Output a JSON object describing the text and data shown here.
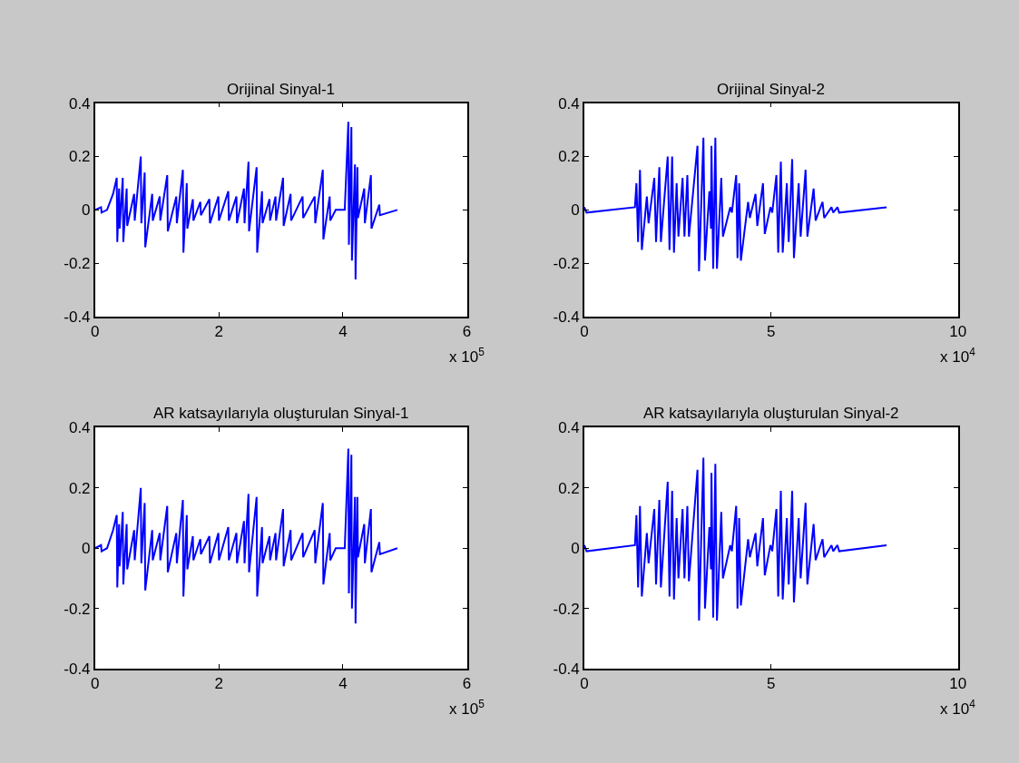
{
  "chart_data": [
    {
      "type": "line",
      "title": "Orijinal Sinyal-1",
      "color": "#0000ff",
      "xlim": [
        0,
        6
      ],
      "ylim": [
        -0.4,
        0.4
      ],
      "xticks": [
        0,
        2,
        4,
        6
      ],
      "yticks": [
        -0.4,
        -0.2,
        0,
        0.2,
        0.4
      ],
      "annotations": [
        "x 10$^{5}$"
      ],
      "x": [
        0,
        0.097,
        0.105,
        0.194,
        0.291,
        0.35,
        0.359,
        0.388,
        0.397,
        0.447,
        0.456,
        0.51,
        0.519,
        0.631,
        0.64,
        0.738,
        0.747,
        0.801,
        0.81,
        0.922,
        0.931,
        1.044,
        1.053,
        1.165,
        1.174,
        1.311,
        1.32,
        1.417,
        1.426,
        1.48,
        1.489,
        1.578,
        1.587,
        1.699,
        1.708,
        1.845,
        1.854,
        1.99,
        1.999,
        2.15,
        2.159,
        2.281,
        2.29,
        2.403,
        2.412,
        2.476,
        2.485,
        2.607,
        2.616,
        2.694,
        2.703,
        2.815,
        2.824,
        2.912,
        2.921,
        3.034,
        3.043,
        3.155,
        3.164,
        3.349,
        3.358,
        3.544,
        3.553,
        3.675,
        3.684,
        3.786,
        3.795,
        3.883,
        4.029,
        4.087,
        4.096,
        4.136,
        4.145,
        4.194,
        4.203,
        4.233,
        4.242,
        4.344,
        4.353,
        4.451,
        4.46,
        4.587,
        4.596,
        4.878
      ],
      "values": [
        0,
        0.01,
        -0.01,
        0,
        0.06,
        0.12,
        -0.12,
        0.08,
        -0.07,
        0.12,
        -0.12,
        0.08,
        -0.06,
        0.06,
        -0.04,
        0.2,
        -0.05,
        0.14,
        -0.14,
        0.06,
        -0.04,
        0.05,
        -0.04,
        0.13,
        -0.08,
        0.05,
        -0.05,
        0.15,
        -0.16,
        0.1,
        -0.07,
        0.04,
        -0.04,
        0.03,
        -0.02,
        0.04,
        -0.05,
        0.05,
        -0.04,
        0.07,
        -0.04,
        0.05,
        -0.05,
        0.08,
        -0.05,
        0.18,
        -0.08,
        0.16,
        -0.16,
        0.07,
        -0.05,
        0.04,
        -0.04,
        0.05,
        -0.04,
        0.12,
        -0.06,
        0.06,
        -0.04,
        0.05,
        -0.03,
        0.05,
        -0.05,
        0.15,
        -0.11,
        0.05,
        -0.04,
        0,
        0,
        0.33,
        -0.13,
        0.31,
        -0.19,
        0.17,
        -0.26,
        0.16,
        -0.03,
        0.08,
        -0.05,
        0.13,
        -0.07,
        0.02,
        -0.02,
        0
      ]
    },
    {
      "type": "line",
      "title": "Orijinal Sinyal-2",
      "color": "#0000ff",
      "xlim": [
        0,
        10
      ],
      "ylim": [
        -0.4,
        0.4
      ],
      "xticks": [
        0,
        5,
        10
      ],
      "yticks": [
        -0.4,
        -0.2,
        0,
        0.2,
        0.4
      ],
      "annotations": [
        "x 10$^{4}$"
      ],
      "x": [
        0,
        0.06,
        1.355,
        1.395,
        1.44,
        1.49,
        1.54,
        1.674,
        1.72,
        1.873,
        1.92,
        2.008,
        2.05,
        2.232,
        2.28,
        2.351,
        2.4,
        2.471,
        2.52,
        2.63,
        2.68,
        2.758,
        2.8,
        3.029,
        3.07,
        3.188,
        3.23,
        3.347,
        3.39,
        3.403,
        3.45,
        3.507,
        3.55,
        3.666,
        3.71,
        3.905,
        3.95,
        4.065,
        4.1,
        4.144,
        4.19,
        4.384,
        4.43,
        4.583,
        4.63,
        4.782,
        4.83,
        4.981,
        5.03,
        5.141,
        5.19,
        5.26,
        5.31,
        5.42,
        5.47,
        5.563,
        5.61,
        5.738,
        5.79,
        5.922,
        5.97,
        6.137,
        6.19,
        6.376,
        6.42,
        6.615,
        6.66,
        6.775,
        6.82,
        8.09
      ],
      "values": [
        0.01,
        -0.01,
        0.01,
        0.1,
        -0.12,
        0.15,
        -0.15,
        0.05,
        -0.05,
        0.12,
        -0.12,
        0.16,
        -0.12,
        0.2,
        -0.15,
        0.2,
        -0.16,
        0.1,
        -0.1,
        0.12,
        -0.1,
        0.13,
        -0.1,
        0.24,
        -0.23,
        0.27,
        -0.19,
        0.07,
        -0.07,
        0.24,
        -0.22,
        0.27,
        -0.22,
        0.12,
        -0.1,
        0.01,
        -0.01,
        0.13,
        -0.18,
        0.1,
        -0.19,
        0.03,
        -0.03,
        0.06,
        -0.06,
        0.1,
        -0.09,
        0.01,
        -0.01,
        0.13,
        -0.16,
        0.18,
        -0.16,
        0.1,
        -0.12,
        0.19,
        -0.18,
        0.1,
        -0.1,
        0.15,
        -0.1,
        0.08,
        -0.04,
        0.03,
        -0.03,
        0.01,
        -0.01,
        0.01,
        -0.01,
        0.01
      ]
    },
    {
      "type": "line",
      "title": "AR katsayılarıyla oluşturulan Sinyal-1",
      "color": "#0000ff",
      "xlim": [
        0,
        6
      ],
      "ylim": [
        -0.4,
        0.4
      ],
      "xticks": [
        0,
        2,
        4,
        6
      ],
      "yticks": [
        -0.4,
        -0.2,
        0,
        0.2,
        0.4
      ],
      "annotations": [
        "x 10$^{5}$"
      ],
      "x": [
        0,
        0.097,
        0.105,
        0.194,
        0.291,
        0.35,
        0.359,
        0.388,
        0.397,
        0.447,
        0.456,
        0.51,
        0.519,
        0.631,
        0.64,
        0.738,
        0.747,
        0.801,
        0.81,
        0.922,
        0.931,
        1.044,
        1.053,
        1.165,
        1.174,
        1.311,
        1.32,
        1.417,
        1.426,
        1.48,
        1.489,
        1.578,
        1.587,
        1.699,
        1.708,
        1.845,
        1.854,
        1.99,
        1.999,
        2.15,
        2.159,
        2.281,
        2.29,
        2.403,
        2.412,
        2.476,
        2.485,
        2.607,
        2.616,
        2.694,
        2.703,
        2.815,
        2.824,
        2.912,
        2.921,
        3.034,
        3.043,
        3.155,
        3.164,
        3.349,
        3.358,
        3.544,
        3.553,
        3.675,
        3.684,
        3.786,
        3.795,
        3.883,
        4.029,
        4.087,
        4.096,
        4.136,
        4.145,
        4.194,
        4.203,
        4.233,
        4.242,
        4.344,
        4.353,
        4.451,
        4.46,
        4.587,
        4.596,
        4.878
      ],
      "values": [
        0,
        0.01,
        -0.01,
        0,
        0.06,
        0.11,
        -0.13,
        0.08,
        -0.06,
        0.12,
        -0.12,
        0.08,
        -0.07,
        0.06,
        -0.04,
        0.2,
        -0.05,
        0.15,
        -0.14,
        0.06,
        -0.04,
        0.05,
        -0.04,
        0.14,
        -0.08,
        0.05,
        -0.05,
        0.16,
        -0.16,
        0.11,
        -0.07,
        0.04,
        -0.04,
        0.03,
        -0.02,
        0.04,
        -0.05,
        0.05,
        -0.04,
        0.07,
        -0.04,
        0.05,
        -0.05,
        0.09,
        -0.05,
        0.18,
        -0.08,
        0.17,
        -0.16,
        0.07,
        -0.05,
        0.04,
        -0.04,
        0.05,
        -0.04,
        0.13,
        -0.06,
        0.06,
        -0.04,
        0.05,
        -0.03,
        0.06,
        -0.05,
        0.15,
        -0.12,
        0.05,
        -0.04,
        0,
        0,
        0.33,
        -0.15,
        0.31,
        -0.2,
        0.17,
        -0.25,
        0.17,
        -0.03,
        0.08,
        -0.05,
        0.13,
        -0.08,
        0.02,
        -0.02,
        0
      ]
    },
    {
      "type": "line",
      "title": "AR katsayılarıyla oluşturulan Sinyal-2",
      "color": "#0000ff",
      "xlim": [
        0,
        10
      ],
      "ylim": [
        -0.4,
        0.4
      ],
      "xticks": [
        0,
        5,
        10
      ],
      "yticks": [
        -0.4,
        -0.2,
        0,
        0.2,
        0.4
      ],
      "annotations": [
        "x 10$^{4}$"
      ],
      "x": [
        0,
        0.06,
        1.355,
        1.395,
        1.44,
        1.49,
        1.54,
        1.674,
        1.72,
        1.873,
        1.92,
        2.008,
        2.05,
        2.232,
        2.28,
        2.351,
        2.4,
        2.471,
        2.52,
        2.63,
        2.68,
        2.758,
        2.8,
        3.029,
        3.07,
        3.188,
        3.23,
        3.347,
        3.39,
        3.403,
        3.45,
        3.507,
        3.55,
        3.666,
        3.71,
        3.905,
        3.95,
        4.065,
        4.1,
        4.144,
        4.19,
        4.384,
        4.43,
        4.583,
        4.63,
        4.782,
        4.83,
        4.981,
        5.03,
        5.141,
        5.19,
        5.26,
        5.31,
        5.42,
        5.47,
        5.563,
        5.61,
        5.738,
        5.79,
        5.922,
        5.97,
        6.137,
        6.19,
        6.376,
        6.42,
        6.615,
        6.66,
        6.775,
        6.82,
        8.09
      ],
      "values": [
        0.01,
        -0.01,
        0.01,
        0.11,
        -0.13,
        0.14,
        -0.16,
        0.05,
        -0.05,
        0.13,
        -0.12,
        0.16,
        -0.13,
        0.22,
        -0.16,
        0.19,
        -0.17,
        0.1,
        -0.1,
        0.13,
        -0.1,
        0.14,
        -0.11,
        0.26,
        -0.24,
        0.3,
        -0.2,
        0.07,
        -0.07,
        0.25,
        -0.23,
        0.28,
        -0.24,
        0.12,
        -0.1,
        0.01,
        -0.01,
        0.14,
        -0.2,
        0.1,
        -0.19,
        0.03,
        -0.03,
        0.05,
        -0.06,
        0.1,
        -0.09,
        0.01,
        -0.01,
        0.13,
        -0.16,
        0.19,
        -0.17,
        0.1,
        -0.12,
        0.19,
        -0.18,
        0.1,
        -0.1,
        0.15,
        -0.12,
        0.08,
        -0.04,
        0.03,
        -0.03,
        0.01,
        -0.01,
        0.01,
        -0.01,
        0.01
      ]
    }
  ]
}
